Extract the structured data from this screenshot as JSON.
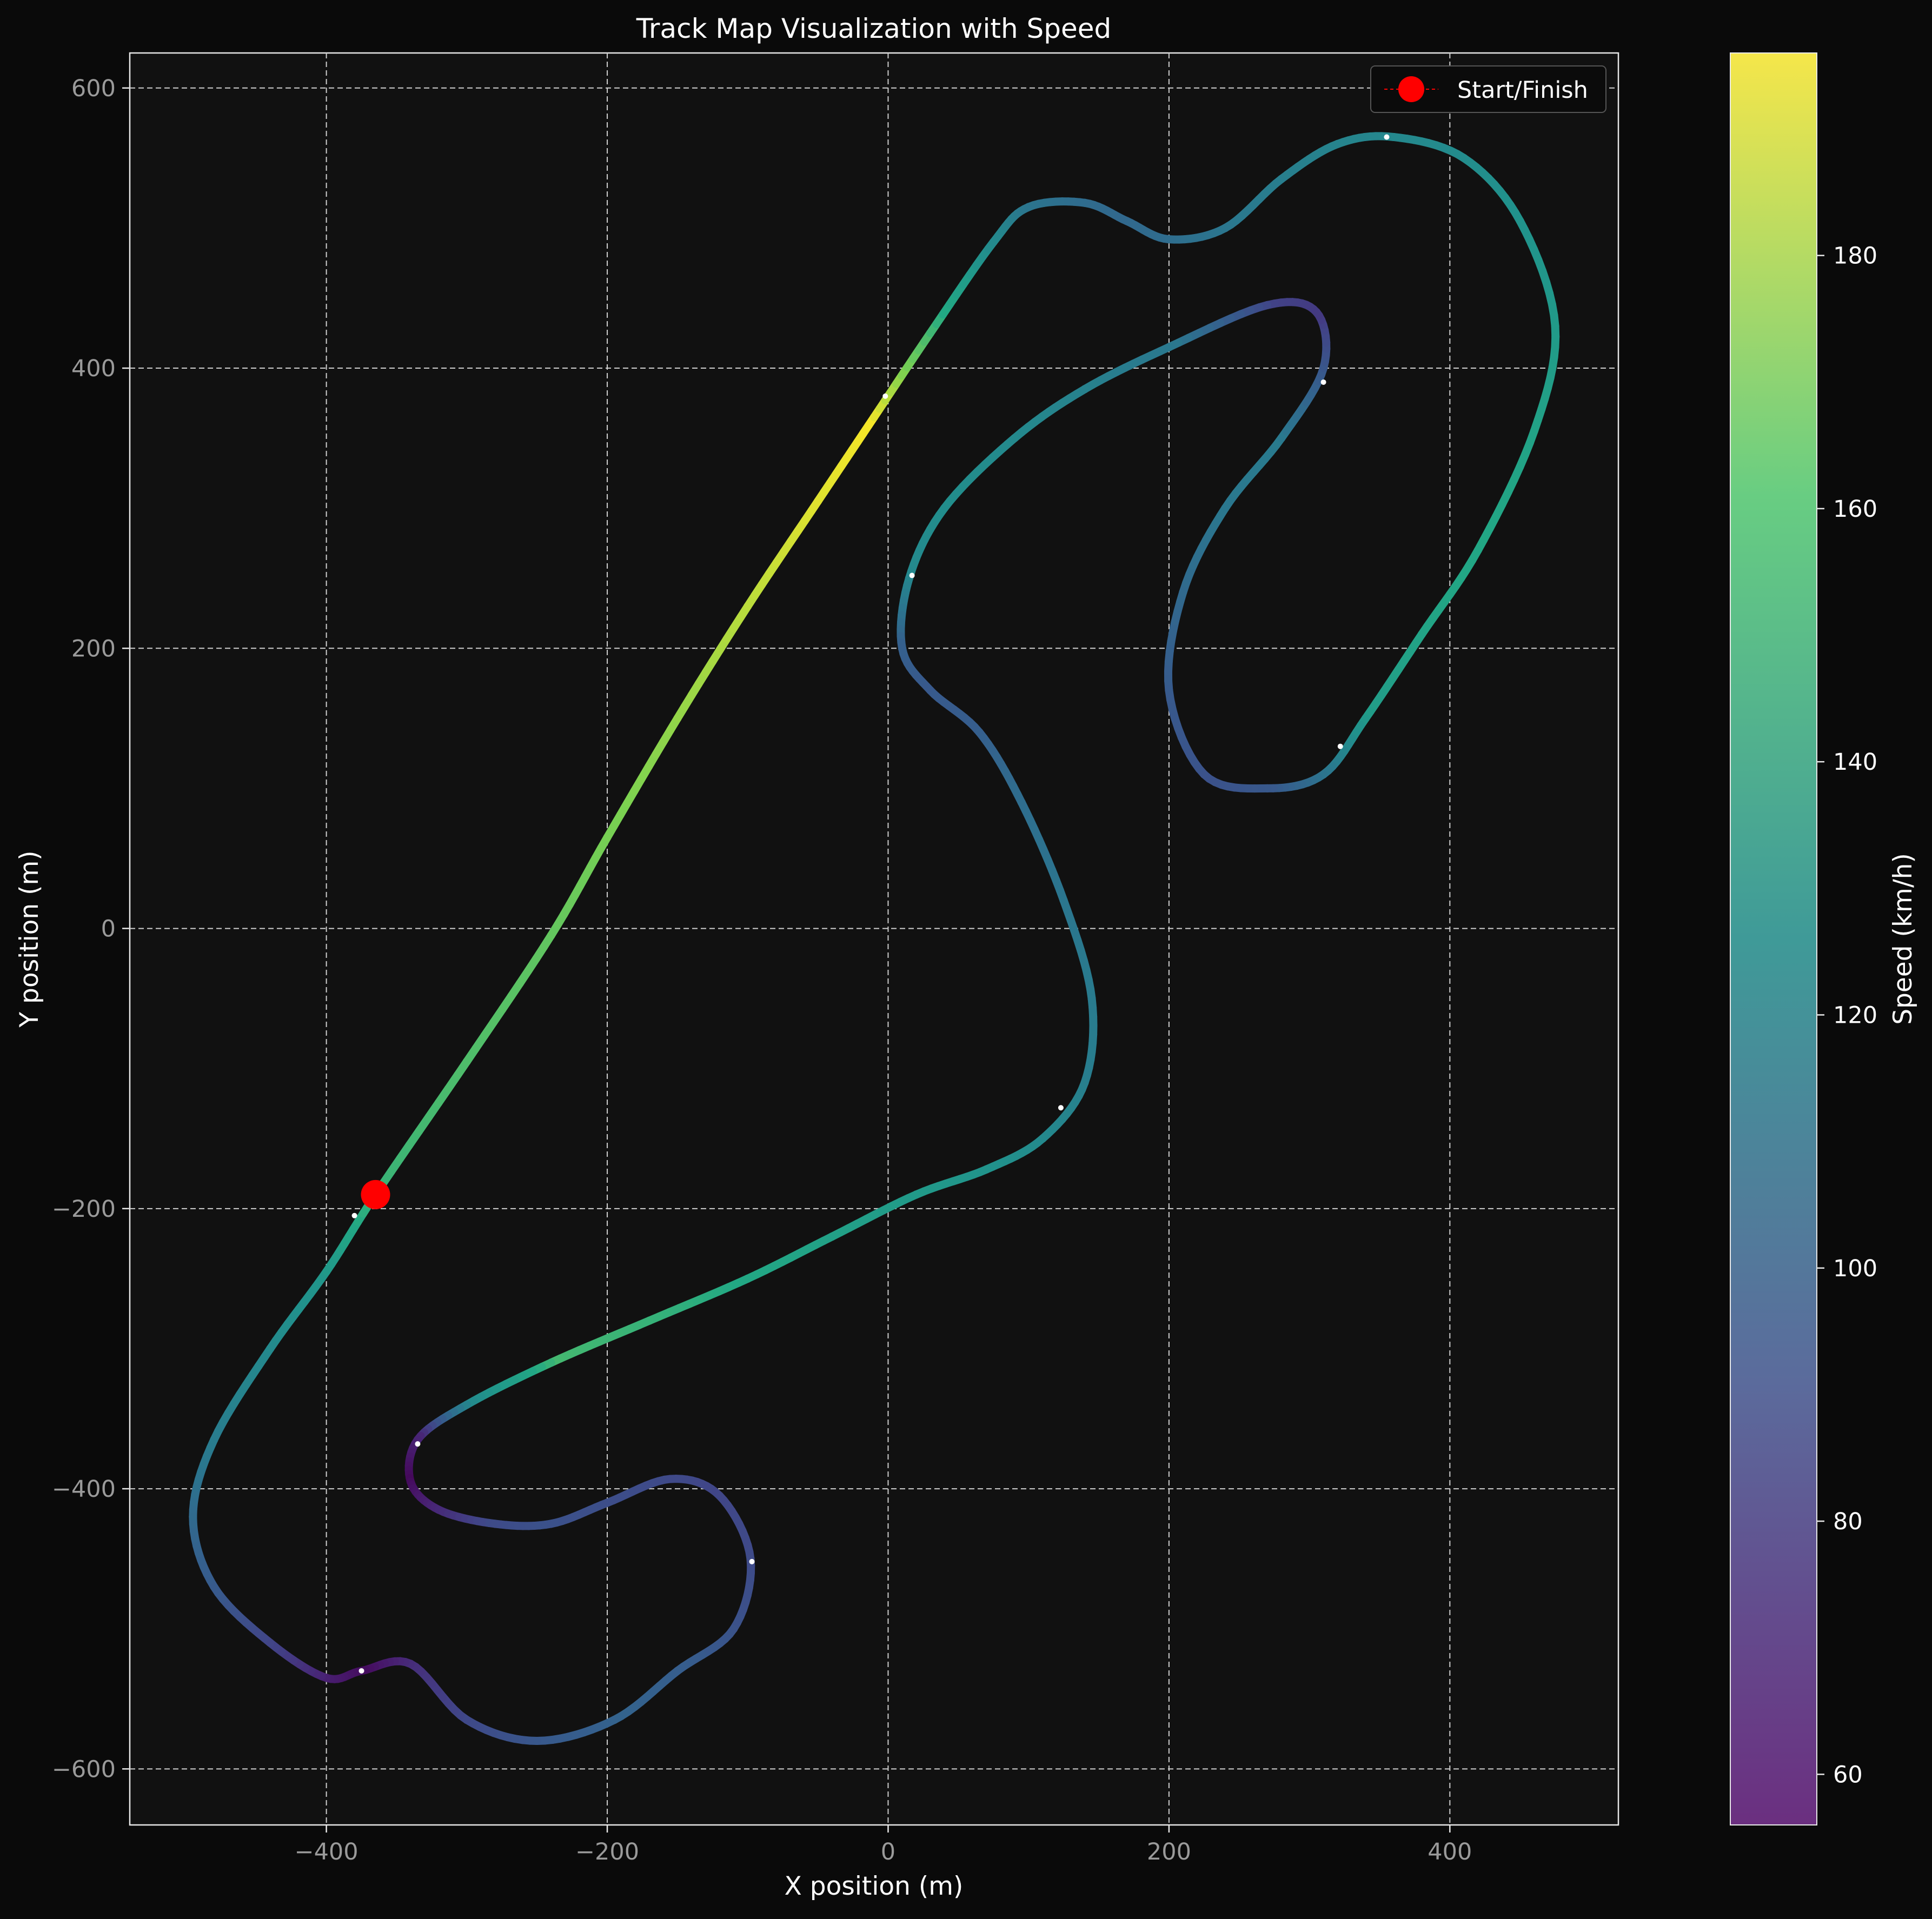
{
  "chart_data": {
    "type": "line",
    "title": "Track Map Visualization with Speed",
    "xlabel": "X position (m)",
    "ylabel": "Y position (m)",
    "xlim": [
      -540,
      520
    ],
    "ylim": [
      -640,
      625
    ],
    "xticks": [
      -400,
      -200,
      0,
      200,
      400
    ],
    "yticks": [
      -600,
      -400,
      -200,
      0,
      200,
      400,
      600
    ],
    "xtick_labels": [
      "−400",
      "−200",
      "0",
      "200",
      "400"
    ],
    "ytick_labels": [
      "−600",
      "−400",
      "−200",
      "0",
      "200",
      "400",
      "600"
    ],
    "grid": true,
    "legend": {
      "position": "top-right",
      "entries": [
        {
          "label": "Start/Finish",
          "color": "#ff0000"
        }
      ]
    },
    "colorbar": {
      "label": "Speed (km/h)",
      "range": [
        56,
        196
      ],
      "ticks": [
        60,
        80,
        100,
        120,
        140,
        160,
        180
      ],
      "colormap": "viridis"
    },
    "start_finish": {
      "x": -365,
      "y": -190
    },
    "track": [
      {
        "x": -365,
        "y": -190,
        "speed": 165
      },
      {
        "x": -300,
        "y": -95,
        "speed": 170
      },
      {
        "x": -240,
        "y": -5,
        "speed": 174
      },
      {
        "x": -200,
        "y": 65,
        "speed": 178
      },
      {
        "x": -150,
        "y": 150,
        "speed": 182
      },
      {
        "x": -100,
        "y": 230,
        "speed": 187
      },
      {
        "x": -50,
        "y": 305,
        "speed": 192
      },
      {
        "x": -10,
        "y": 365,
        "speed": 195
      },
      {
        "x": 30,
        "y": 425,
        "speed": 170
      },
      {
        "x": 75,
        "y": 490,
        "speed": 140
      },
      {
        "x": 100,
        "y": 515,
        "speed": 125
      },
      {
        "x": 140,
        "y": 518,
        "speed": 118
      },
      {
        "x": 170,
        "y": 505,
        "speed": 115
      },
      {
        "x": 200,
        "y": 492,
        "speed": 118
      },
      {
        "x": 240,
        "y": 500,
        "speed": 124
      },
      {
        "x": 280,
        "y": 535,
        "speed": 130
      },
      {
        "x": 320,
        "y": 560,
        "speed": 134
      },
      {
        "x": 360,
        "y": 565,
        "speed": 137
      },
      {
        "x": 410,
        "y": 550,
        "speed": 140
      },
      {
        "x": 450,
        "y": 505,
        "speed": 145
      },
      {
        "x": 475,
        "y": 430,
        "speed": 150
      },
      {
        "x": 460,
        "y": 355,
        "speed": 156
      },
      {
        "x": 420,
        "y": 270,
        "speed": 160
      },
      {
        "x": 380,
        "y": 210,
        "speed": 158
      },
      {
        "x": 340,
        "y": 150,
        "speed": 152
      },
      {
        "x": 310,
        "y": 110,
        "speed": 125
      },
      {
        "x": 270,
        "y": 100,
        "speed": 105
      },
      {
        "x": 225,
        "y": 110,
        "speed": 100
      },
      {
        "x": 200,
        "y": 170,
        "speed": 105
      },
      {
        "x": 210,
        "y": 240,
        "speed": 115
      },
      {
        "x": 240,
        "y": 300,
        "speed": 125
      },
      {
        "x": 280,
        "y": 350,
        "speed": 128
      },
      {
        "x": 310,
        "y": 400,
        "speed": 105
      },
      {
        "x": 305,
        "y": 440,
        "speed": 85
      },
      {
        "x": 270,
        "y": 445,
        "speed": 90
      },
      {
        "x": 200,
        "y": 415,
        "speed": 125
      },
      {
        "x": 140,
        "y": 385,
        "speed": 132
      },
      {
        "x": 90,
        "y": 350,
        "speed": 138
      },
      {
        "x": 40,
        "y": 300,
        "speed": 142
      },
      {
        "x": 15,
        "y": 250,
        "speed": 138
      },
      {
        "x": 10,
        "y": 200,
        "speed": 110
      },
      {
        "x": 30,
        "y": 170,
        "speed": 105
      },
      {
        "x": 65,
        "y": 140,
        "speed": 108
      },
      {
        "x": 95,
        "y": 90,
        "speed": 118
      },
      {
        "x": 125,
        "y": 20,
        "speed": 124
      },
      {
        "x": 145,
        "y": -50,
        "speed": 128
      },
      {
        "x": 140,
        "y": -110,
        "speed": 130
      },
      {
        "x": 110,
        "y": -150,
        "speed": 138
      },
      {
        "x": 70,
        "y": -172,
        "speed": 145
      },
      {
        "x": 20,
        "y": -190,
        "speed": 150
      },
      {
        "x": -40,
        "y": -220,
        "speed": 155
      },
      {
        "x": -100,
        "y": -250,
        "speed": 160
      },
      {
        "x": -170,
        "y": -280,
        "speed": 165
      },
      {
        "x": -240,
        "y": -310,
        "speed": 168
      },
      {
        "x": -300,
        "y": -340,
        "speed": 140
      },
      {
        "x": -335,
        "y": -365,
        "speed": 75
      },
      {
        "x": -340,
        "y": -395,
        "speed": 60
      },
      {
        "x": -320,
        "y": -415,
        "speed": 75
      },
      {
        "x": -280,
        "y": -425,
        "speed": 95
      },
      {
        "x": -240,
        "y": -425,
        "speed": 100
      },
      {
        "x": -200,
        "y": -410,
        "speed": 98
      },
      {
        "x": -155,
        "y": -393,
        "speed": 95
      },
      {
        "x": -120,
        "y": -405,
        "speed": 92
      },
      {
        "x": -98,
        "y": -450,
        "speed": 95
      },
      {
        "x": -110,
        "y": -500,
        "speed": 100
      },
      {
        "x": -150,
        "y": -530,
        "speed": 108
      },
      {
        "x": -195,
        "y": -565,
        "speed": 112
      },
      {
        "x": -250,
        "y": -580,
        "speed": 105
      },
      {
        "x": -300,
        "y": -565,
        "speed": 95
      },
      {
        "x": -340,
        "y": -525,
        "speed": 80
      },
      {
        "x": -375,
        "y": -530,
        "speed": 62
      },
      {
        "x": -400,
        "y": -535,
        "speed": 70
      },
      {
        "x": -440,
        "y": -510,
        "speed": 90
      },
      {
        "x": -480,
        "y": -470,
        "speed": 105
      },
      {
        "x": -495,
        "y": -420,
        "speed": 115
      },
      {
        "x": -480,
        "y": -365,
        "speed": 128
      },
      {
        "x": -440,
        "y": -300,
        "speed": 138
      },
      {
        "x": -400,
        "y": -245,
        "speed": 148
      },
      {
        "x": -365,
        "y": -190,
        "speed": 165
      }
    ],
    "direction_arrows": [
      {
        "x": -380,
        "y": -205
      },
      {
        "x": -2,
        "y": 380
      },
      {
        "x": 355,
        "y": 565
      },
      {
        "x": 310,
        "y": 390
      },
      {
        "x": 322,
        "y": 130
      },
      {
        "x": 17,
        "y": 252
      },
      {
        "x": 123,
        "y": -128
      },
      {
        "x": -335,
        "y": -368
      },
      {
        "x": -97,
        "y": -452
      },
      {
        "x": -375,
        "y": -530
      }
    ]
  }
}
